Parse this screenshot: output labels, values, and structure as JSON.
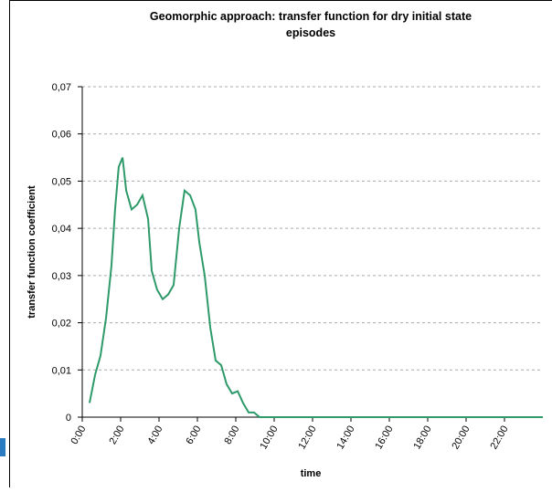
{
  "chart_data": {
    "type": "line",
    "title": [
      "Geomorphic approach: transfer function for dry initial state",
      "episodes"
    ],
    "xlabel": "time",
    "ylabel": "transfer function coefficient",
    "x": [
      0.38,
      0.67,
      0.95,
      1.24,
      1.52,
      1.71,
      1.9,
      2.1,
      2.29,
      2.57,
      2.86,
      3.14,
      3.43,
      3.62,
      3.9,
      4.19,
      4.48,
      4.76,
      5.05,
      5.33,
      5.62,
      5.9,
      6.1,
      6.38,
      6.67,
      6.95,
      7.24,
      7.52,
      7.81,
      8.1,
      8.38,
      8.67,
      8.95,
      9.24,
      10,
      12,
      14,
      16,
      18,
      20,
      22,
      24
    ],
    "series": [
      {
        "name": "transfer function",
        "color": "#2e9a6a",
        "values": [
          0.003,
          0.009,
          0.013,
          0.021,
          0.032,
          0.044,
          0.053,
          0.055,
          0.048,
          0.044,
          0.045,
          0.047,
          0.042,
          0.031,
          0.027,
          0.025,
          0.026,
          0.028,
          0.04,
          0.048,
          0.047,
          0.044,
          0.037,
          0.03,
          0.019,
          0.012,
          0.011,
          0.007,
          0.005,
          0.0055,
          0.003,
          0.001,
          0.001,
          0,
          0,
          0,
          0,
          0,
          0,
          0,
          0,
          0
        ]
      }
    ],
    "xlim": [
      0,
      24
    ],
    "xticks": [
      {
        "value": 0,
        "label": "0:00"
      },
      {
        "value": 2,
        "label": "2:00"
      },
      {
        "value": 4,
        "label": "4:00"
      },
      {
        "value": 6,
        "label": "6:00"
      },
      {
        "value": 8,
        "label": "8:00"
      },
      {
        "value": 10,
        "label": "10:00"
      },
      {
        "value": 12,
        "label": "12:00"
      },
      {
        "value": 14,
        "label": "14:00"
      },
      {
        "value": 16,
        "label": "16:00"
      },
      {
        "value": 18,
        "label": "18:00"
      },
      {
        "value": 20,
        "label": "20:00"
      },
      {
        "value": 22,
        "label": "22:00"
      }
    ],
    "ylim": [
      0,
      0.07
    ],
    "yticks": [
      0,
      {
        "value": 0.01,
        "label": "0,01"
      },
      {
        "value": 0.02,
        "label": "0,02"
      },
      {
        "value": 0.03,
        "label": "0,03"
      },
      {
        "value": 0.04,
        "label": "0,04"
      },
      {
        "value": 0.05,
        "label": "0,05"
      },
      {
        "value": 0.06,
        "label": "0,06"
      },
      {
        "value": 0.07,
        "label": "0,07"
      }
    ],
    "grid": true
  }
}
